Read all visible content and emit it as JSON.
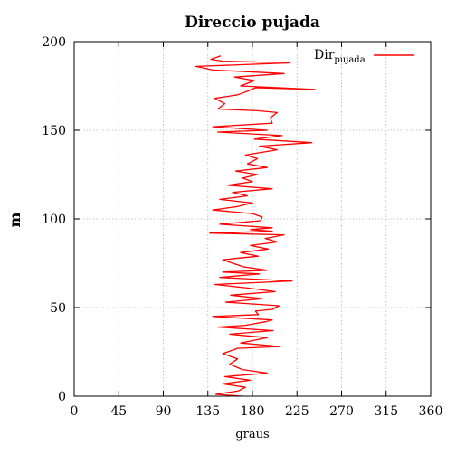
{
  "chart_data": {
    "type": "line",
    "title": "Direccio pujada",
    "xlabel": "graus",
    "ylabel": "m",
    "xlim": [
      0,
      360
    ],
    "ylim": [
      0,
      200
    ],
    "xticks": [
      0,
      45,
      90,
      135,
      180,
      225,
      270,
      315,
      360
    ],
    "yticks": [
      0,
      50,
      100,
      150,
      200
    ],
    "grid": true,
    "legend": "top-right",
    "series": [
      {
        "legend_main": "Dir",
        "legend_sub": "pujada",
        "color": "#ff0000",
        "points": [
          [
            170,
            0
          ],
          [
            143,
            1
          ],
          [
            166,
            3
          ],
          [
            173,
            5
          ],
          [
            150,
            7
          ],
          [
            178,
            9
          ],
          [
            152,
            11
          ],
          [
            195,
            13
          ],
          [
            170,
            15
          ],
          [
            157,
            18
          ],
          [
            165,
            21
          ],
          [
            150,
            24
          ],
          [
            165,
            27
          ],
          [
            208,
            28
          ],
          [
            168,
            30
          ],
          [
            195,
            33
          ],
          [
            157,
            35
          ],
          [
            201,
            37
          ],
          [
            145,
            39
          ],
          [
            173,
            40
          ],
          [
            193,
            42
          ],
          [
            200,
            43
          ],
          [
            140,
            45
          ],
          [
            186,
            46
          ],
          [
            183,
            48
          ],
          [
            200,
            49
          ],
          [
            207,
            51
          ],
          [
            153,
            53
          ],
          [
            190,
            55
          ],
          [
            158,
            57
          ],
          [
            203,
            59
          ],
          [
            175,
            61
          ],
          [
            142,
            63
          ],
          [
            220,
            65
          ],
          [
            147,
            67
          ],
          [
            187,
            69
          ],
          [
            150,
            70
          ],
          [
            195,
            71
          ],
          [
            171,
            73
          ],
          [
            160,
            75
          ],
          [
            150,
            77
          ],
          [
            186,
            79
          ],
          [
            168,
            81
          ],
          [
            196,
            83
          ],
          [
            178,
            85
          ],
          [
            205,
            87
          ],
          [
            193,
            89
          ],
          [
            212,
            91
          ],
          [
            137,
            92
          ],
          [
            200,
            93
          ],
          [
            178,
            94
          ],
          [
            200,
            95
          ],
          [
            147,
            97
          ],
          [
            188,
            99
          ],
          [
            190,
            101
          ],
          [
            180,
            103
          ],
          [
            140,
            105
          ],
          [
            165,
            107
          ],
          [
            180,
            109
          ],
          [
            147,
            111
          ],
          [
            175,
            113
          ],
          [
            160,
            115
          ],
          [
            200,
            117
          ],
          [
            155,
            119
          ],
          [
            180,
            121
          ],
          [
            170,
            123
          ],
          [
            185,
            125
          ],
          [
            163,
            127
          ],
          [
            195,
            129
          ],
          [
            175,
            131
          ],
          [
            185,
            134
          ],
          [
            173,
            136
          ],
          [
            205,
            139
          ],
          [
            187,
            141
          ],
          [
            240,
            143
          ],
          [
            182,
            145
          ],
          [
            210,
            147
          ],
          [
            145,
            149
          ],
          [
            195,
            150
          ],
          [
            140,
            152
          ],
          [
            200,
            154
          ],
          [
            198,
            157
          ],
          [
            205,
            160
          ],
          [
            185,
            161
          ],
          [
            145,
            162
          ],
          [
            152,
            165
          ],
          [
            142,
            168
          ],
          [
            165,
            170
          ],
          [
            175,
            172
          ],
          [
            183,
            174
          ],
          [
            243,
            173
          ],
          [
            168,
            175
          ],
          [
            182,
            178
          ],
          [
            162,
            180
          ],
          [
            212,
            182
          ],
          [
            140,
            184
          ],
          [
            123,
            186
          ],
          [
            218,
            188
          ],
          [
            150,
            189
          ],
          [
            138,
            190
          ],
          [
            148,
            192
          ]
        ]
      }
    ]
  }
}
